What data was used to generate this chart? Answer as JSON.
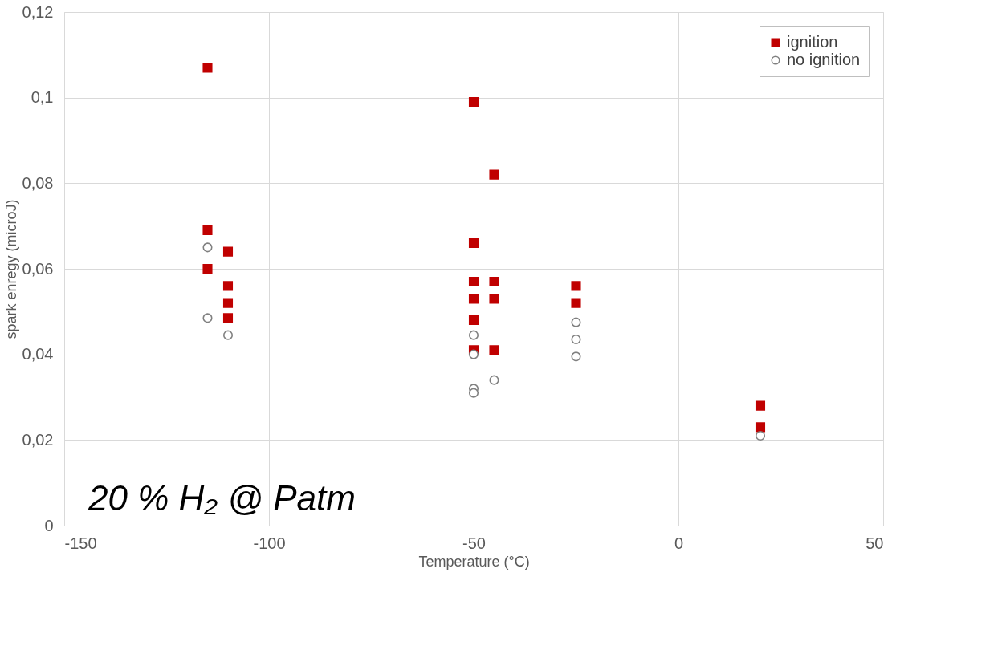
{
  "chart_data": {
    "type": "scatter",
    "xlabel": "Temperature (°C)",
    "ylabel": "spark enregy (microJ)",
    "annotations": [
      "20 % H₂ @ Patm"
    ],
    "xlim": [
      -150,
      50
    ],
    "xticks": [
      -150,
      -100,
      -50,
      0,
      50
    ],
    "ylim": [
      0,
      0.12
    ],
    "yticks": [
      0,
      {
        "value": 0.02,
        "label": "0,02"
      },
      {
        "value": 0.04,
        "label": "0,04"
      },
      {
        "value": 0.06,
        "label": "0,06"
      },
      {
        "value": 0.08,
        "label": "0,08"
      },
      {
        "value": 0.1,
        "label": "0,1"
      },
      {
        "value": 0.12,
        "label": "0,12"
      }
    ],
    "grid": true,
    "legend": "top right",
    "series": [
      {
        "name": "ignition",
        "color": "#c00000",
        "marker": "square",
        "x": [
          -115,
          -115,
          -115,
          -110,
          -110,
          -110,
          -110,
          -50,
          -50,
          -50,
          -50,
          -50,
          -50,
          -45,
          -45,
          -45,
          -45,
          -25,
          -25,
          20,
          20
        ],
        "values": [
          0.107,
          0.069,
          0.06,
          0.064,
          0.056,
          0.052,
          0.0485,
          0.099,
          0.066,
          0.057,
          0.053,
          0.048,
          0.041,
          0.082,
          0.057,
          0.053,
          0.041,
          0.056,
          0.052,
          0.028,
          0.023
        ]
      },
      {
        "name": "no ignition",
        "color": "#808080",
        "marker": "circle",
        "x": [
          -115,
          -115,
          -110,
          -50,
          -50,
          -50,
          -50,
          -45,
          -25,
          -25,
          -25,
          20
        ],
        "values": [
          0.065,
          0.0485,
          0.0445,
          0.0445,
          0.04,
          0.032,
          0.031,
          0.034,
          0.0475,
          0.0435,
          0.0395,
          0.021
        ]
      }
    ]
  }
}
